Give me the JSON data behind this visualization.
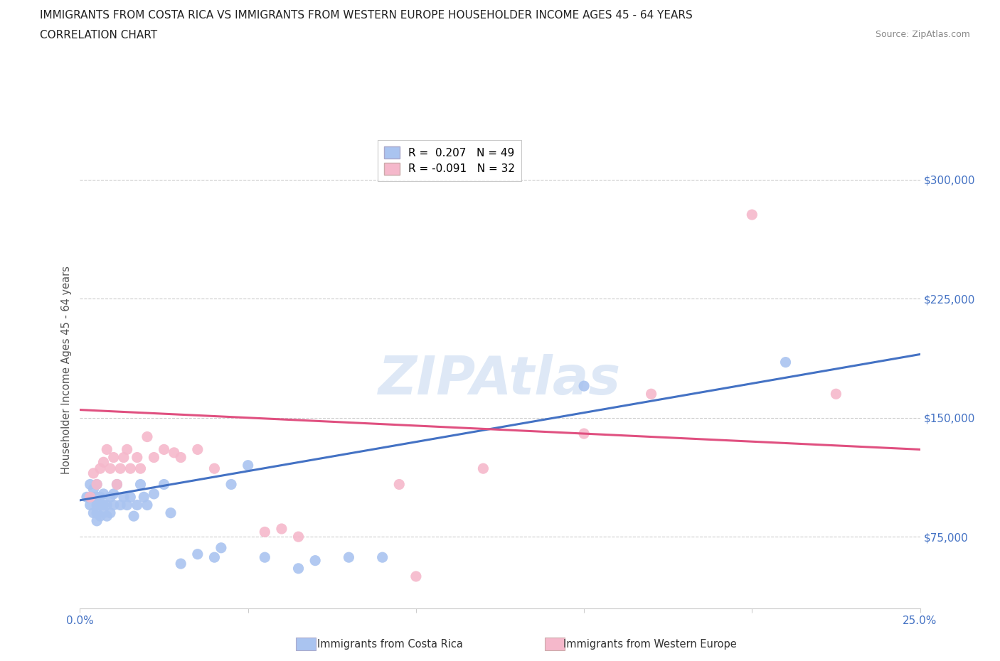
{
  "title_line1": "IMMIGRANTS FROM COSTA RICA VS IMMIGRANTS FROM WESTERN EUROPE HOUSEHOLDER INCOME AGES 45 - 64 YEARS",
  "title_line2": "CORRELATION CHART",
  "source_text": "Source: ZipAtlas.com",
  "ylabel": "Householder Income Ages 45 - 64 years",
  "xlim": [
    0.0,
    0.25
  ],
  "ylim": [
    30000,
    330000
  ],
  "yticks": [
    75000,
    150000,
    225000,
    300000
  ],
  "ytick_labels": [
    "$75,000",
    "$150,000",
    "$225,000",
    "$300,000"
  ],
  "xticks": [
    0.0,
    0.05,
    0.1,
    0.15,
    0.2,
    0.25
  ],
  "xtick_labels": [
    "0.0%",
    "",
    "",
    "",
    "",
    "25.0%"
  ],
  "watermark": "ZIPAtlas",
  "legend_entries": [
    {
      "label": "R =  0.207   N = 49",
      "color": "#aac4f0"
    },
    {
      "label": "R = -0.091   N = 32",
      "color": "#f5b8cb"
    }
  ],
  "series_blue": {
    "color": "#aac4f0",
    "line_color": "#4472c4",
    "x": [
      0.002,
      0.003,
      0.003,
      0.004,
      0.004,
      0.004,
      0.005,
      0.005,
      0.005,
      0.005,
      0.005,
      0.006,
      0.006,
      0.006,
      0.007,
      0.007,
      0.007,
      0.008,
      0.008,
      0.009,
      0.009,
      0.01,
      0.01,
      0.011,
      0.012,
      0.013,
      0.014,
      0.015,
      0.016,
      0.017,
      0.018,
      0.019,
      0.02,
      0.022,
      0.025,
      0.027,
      0.03,
      0.035,
      0.04,
      0.042,
      0.045,
      0.05,
      0.055,
      0.065,
      0.07,
      0.08,
      0.09,
      0.15,
      0.21
    ],
    "y": [
      100000,
      95000,
      108000,
      90000,
      100000,
      105000,
      85000,
      90000,
      95000,
      100000,
      108000,
      88000,
      95000,
      100000,
      90000,
      95000,
      102000,
      88000,
      95000,
      90000,
      100000,
      95000,
      102000,
      108000,
      95000,
      100000,
      95000,
      100000,
      88000,
      95000,
      108000,
      100000,
      95000,
      102000,
      108000,
      90000,
      58000,
      64000,
      62000,
      68000,
      108000,
      120000,
      62000,
      55000,
      60000,
      62000,
      62000,
      170000,
      185000
    ],
    "trend_x": [
      0.0,
      0.25
    ],
    "trend_y": [
      98000,
      190000
    ]
  },
  "series_pink": {
    "color": "#f5b8cb",
    "line_color": "#e05080",
    "x": [
      0.003,
      0.004,
      0.005,
      0.006,
      0.007,
      0.008,
      0.009,
      0.01,
      0.011,
      0.012,
      0.013,
      0.014,
      0.015,
      0.017,
      0.018,
      0.02,
      0.022,
      0.025,
      0.028,
      0.03,
      0.035,
      0.04,
      0.055,
      0.06,
      0.065,
      0.095,
      0.1,
      0.12,
      0.15,
      0.17,
      0.2,
      0.225
    ],
    "y": [
      100000,
      115000,
      108000,
      118000,
      122000,
      130000,
      118000,
      125000,
      108000,
      118000,
      125000,
      130000,
      118000,
      125000,
      118000,
      138000,
      125000,
      130000,
      128000,
      125000,
      130000,
      118000,
      78000,
      80000,
      75000,
      108000,
      50000,
      118000,
      140000,
      165000,
      278000,
      165000
    ],
    "trend_x": [
      0.0,
      0.25
    ],
    "trend_y": [
      155000,
      130000
    ]
  },
  "background_color": "#ffffff",
  "grid_color": "#cccccc",
  "title_color": "#222222",
  "axis_label_color": "#555555",
  "ytick_color": "#4472c4",
  "xtick_color": "#4472c4"
}
